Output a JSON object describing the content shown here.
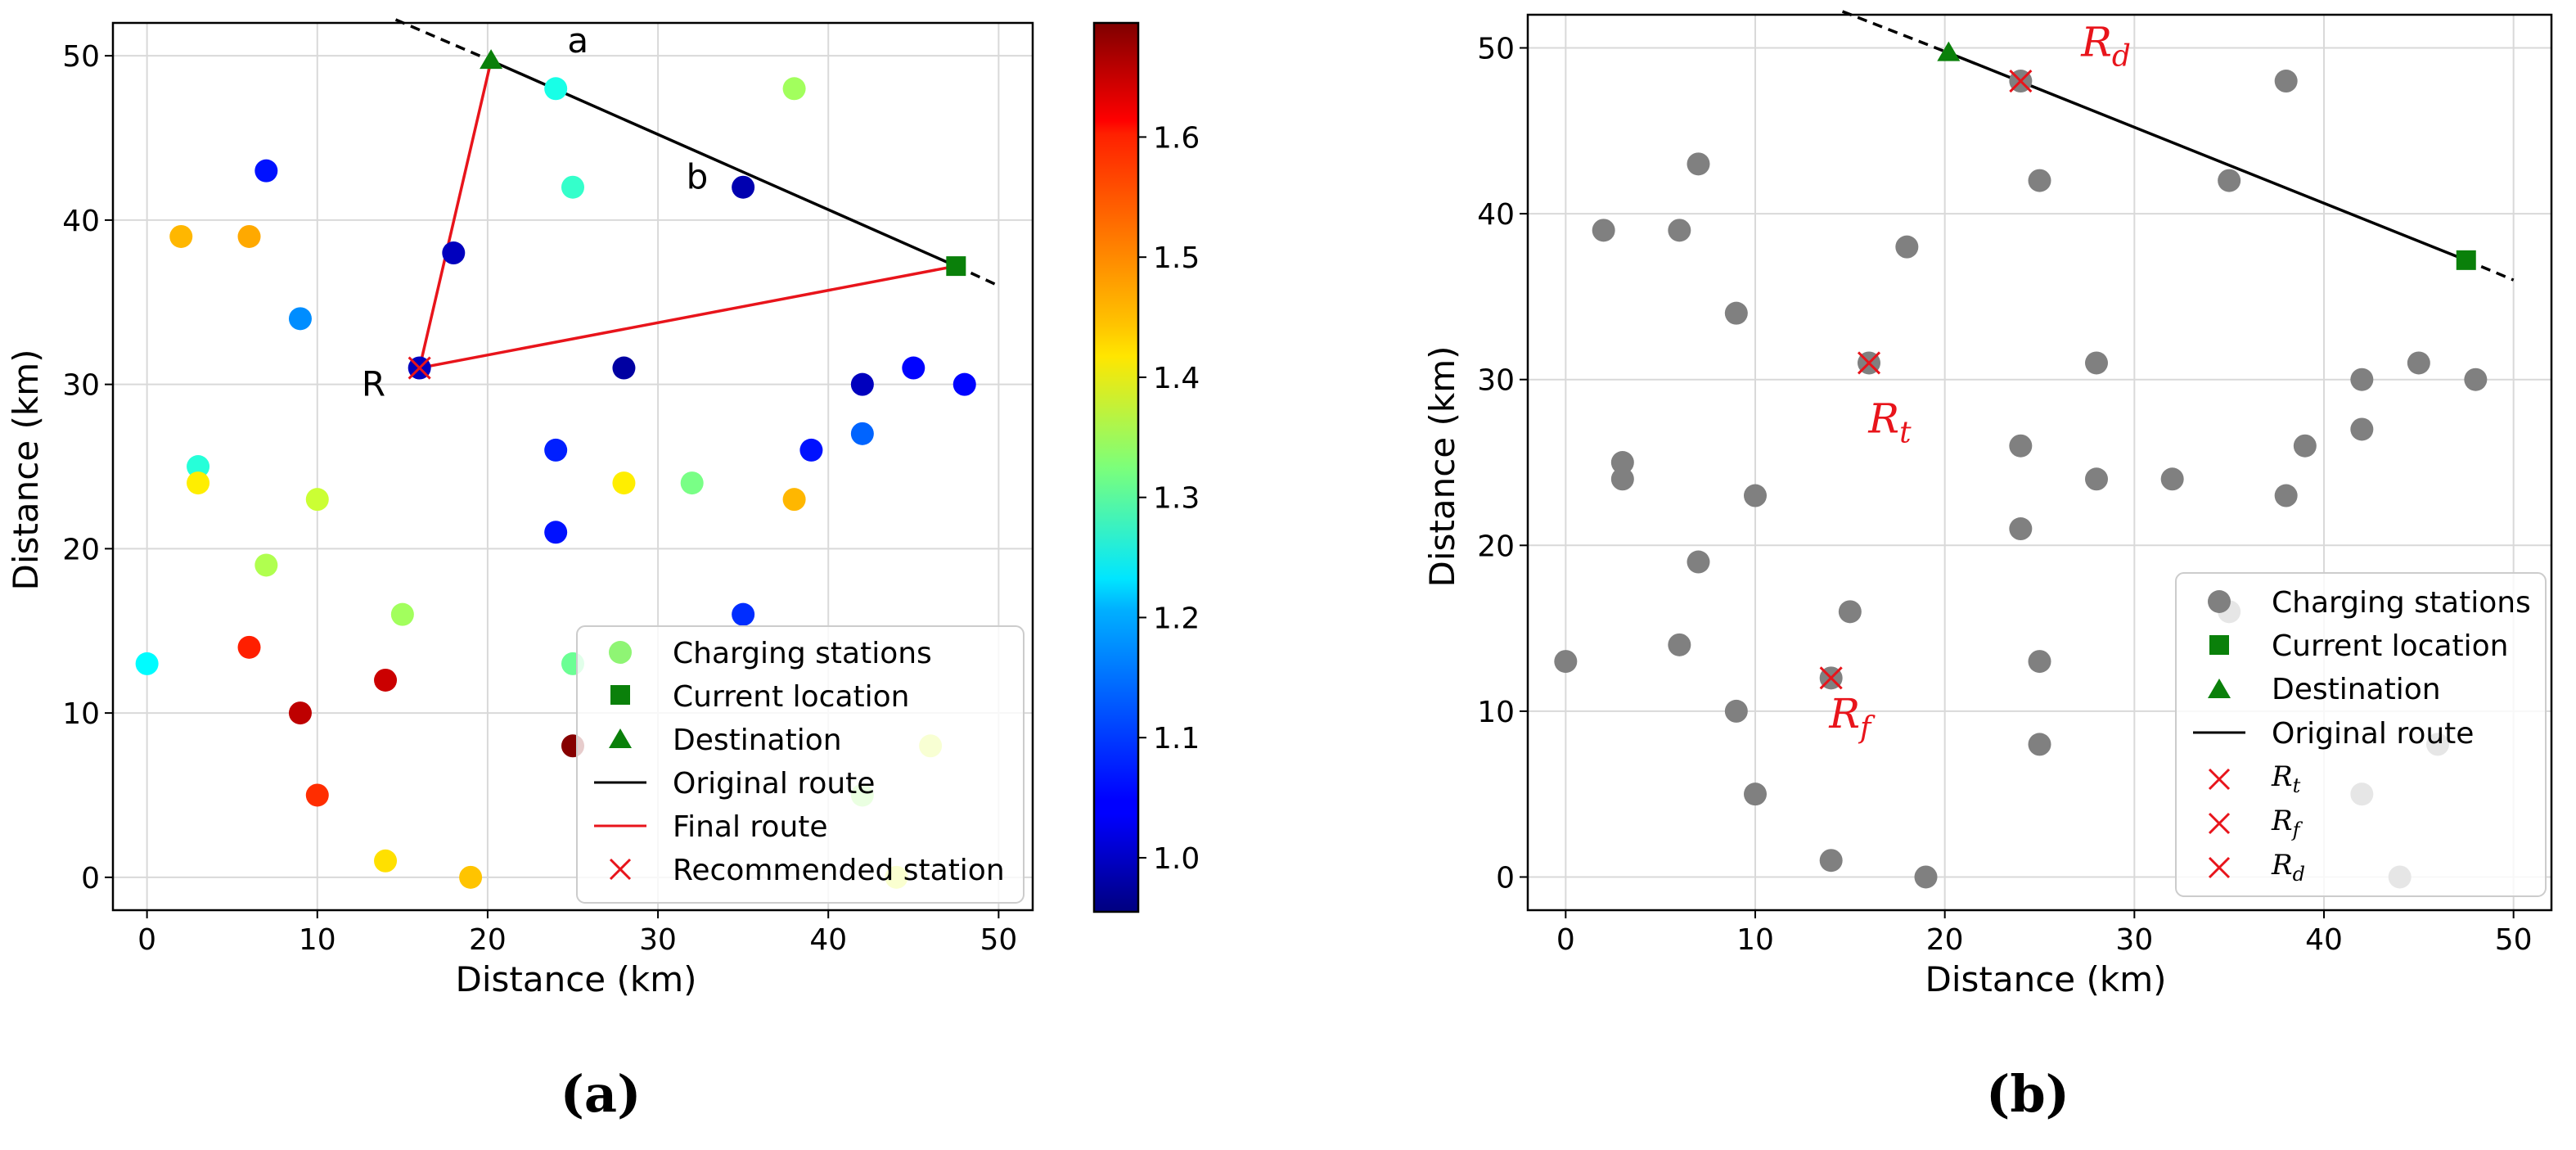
{
  "figure": {
    "panel_a_caption": "(a)",
    "panel_b_caption": "(b)",
    "colorbar_ticks": [
      "1.0",
      "1.1",
      "1.2",
      "1.3",
      "1.4",
      "1.5",
      "1.6"
    ],
    "colorbar_tick_values": [
      1.0,
      1.1,
      1.2,
      1.3,
      1.4,
      1.5,
      1.6
    ],
    "colorbar_range": [
      0.955,
      1.695
    ]
  },
  "chart_data": [
    {
      "type": "scatter",
      "panel": "a",
      "xlabel": "Distance (km)",
      "ylabel": "Distance (km)",
      "xlim": [
        -2,
        52
      ],
      "ylim": [
        -2,
        52
      ],
      "xticks": [
        0,
        10,
        20,
        30,
        40,
        50
      ],
      "yticks": [
        0,
        10,
        20,
        30,
        40,
        50
      ],
      "grid": true,
      "colorbar": true,
      "stations": [
        {
          "x": 0,
          "y": 13,
          "v": 1.23
        },
        {
          "x": 2,
          "y": 39,
          "v": 1.47
        },
        {
          "x": 3,
          "y": 25,
          "v": 1.26
        },
        {
          "x": 3,
          "y": 24,
          "v": 1.43
        },
        {
          "x": 6,
          "y": 39,
          "v": 1.48
        },
        {
          "x": 6,
          "y": 14,
          "v": 1.58
        },
        {
          "x": 7,
          "y": 43,
          "v": 1.06
        },
        {
          "x": 7,
          "y": 19,
          "v": 1.36
        },
        {
          "x": 9,
          "y": 34,
          "v": 1.15
        },
        {
          "x": 9,
          "y": 10,
          "v": 1.65
        },
        {
          "x": 10,
          "y": 23,
          "v": 1.38
        },
        {
          "x": 10,
          "y": 5,
          "v": 1.57
        },
        {
          "x": 14,
          "y": 12,
          "v": 1.64
        },
        {
          "x": 14,
          "y": 1,
          "v": 1.44
        },
        {
          "x": 15,
          "y": 16,
          "v": 1.35
        },
        {
          "x": 16,
          "y": 31,
          "v": 1.0
        },
        {
          "x": 18,
          "y": 38,
          "v": 1.0
        },
        {
          "x": 19,
          "y": 0,
          "v": 1.46
        },
        {
          "x": 24,
          "y": 48,
          "v": 1.25
        },
        {
          "x": 24,
          "y": 26,
          "v": 1.07
        },
        {
          "x": 24,
          "y": 21,
          "v": 1.06
        },
        {
          "x": 25,
          "y": 42,
          "v": 1.27
        },
        {
          "x": 25,
          "y": 13,
          "v": 1.31
        },
        {
          "x": 25,
          "y": 8,
          "v": 1.69
        },
        {
          "x": 28,
          "y": 31,
          "v": 0.98
        },
        {
          "x": 28,
          "y": 24,
          "v": 1.43
        },
        {
          "x": 32,
          "y": 24,
          "v": 1.32
        },
        {
          "x": 35,
          "y": 42,
          "v": 0.99
        },
        {
          "x": 35,
          "y": 16,
          "v": 1.08
        },
        {
          "x": 38,
          "y": 48,
          "v": 1.35
        },
        {
          "x": 38,
          "y": 23,
          "v": 1.47
        },
        {
          "x": 39,
          "y": 26,
          "v": 1.06
        },
        {
          "x": 42,
          "y": 30,
          "v": 1.0
        },
        {
          "x": 42,
          "y": 27,
          "v": 1.12
        },
        {
          "x": 42,
          "y": 5,
          "v": 1.34
        },
        {
          "x": 44,
          "y": 0,
          "v": 1.4
        },
        {
          "x": 45,
          "y": 31,
          "v": 1.05
        },
        {
          "x": 46,
          "y": 8,
          "v": 1.39
        },
        {
          "x": 48,
          "y": 30,
          "v": 1.05
        }
      ],
      "current_location": {
        "x": 47.5,
        "y": 37.2
      },
      "destination": {
        "x": 20.2,
        "y": 49.7
      },
      "original_route_solid": [
        [
          20.2,
          49.7
        ],
        [
          47.5,
          37.2
        ]
      ],
      "original_route_dashed": [
        [
          [
            14.6,
            52.2
          ],
          [
            20.2,
            49.7
          ]
        ],
        [
          [
            47.5,
            37.2
          ],
          [
            50,
            36
          ]
        ]
      ],
      "final_route": [
        [
          47.5,
          37.2
        ],
        [
          16,
          31
        ],
        [
          20.2,
          49.7
        ]
      ],
      "recommended_station": {
        "x": 16,
        "y": 31
      },
      "annotations": [
        {
          "text": "a",
          "x": 25.3,
          "y": 50.2
        },
        {
          "text": "b",
          "x": 32.3,
          "y": 41.9
        },
        {
          "text": "R",
          "x": 13.3,
          "y": 29.3
        }
      ],
      "legend_position": "lower-right",
      "legend": {
        "stations": "Charging stations",
        "current": "Current location",
        "destination": "Destination",
        "original": "Original route",
        "final": "Final route",
        "recommended": "Recommended station"
      }
    },
    {
      "type": "scatter",
      "panel": "b",
      "xlabel": "Distance (km)",
      "ylabel": "Distance (km)",
      "xlim": [
        -2,
        52
      ],
      "ylim": [
        -2,
        52
      ],
      "xticks": [
        0,
        10,
        20,
        30,
        40,
        50
      ],
      "yticks": [
        0,
        10,
        20,
        30,
        40,
        50
      ],
      "grid": true,
      "stations": [
        {
          "x": 0,
          "y": 13
        },
        {
          "x": 2,
          "y": 39
        },
        {
          "x": 3,
          "y": 25
        },
        {
          "x": 3,
          "y": 24
        },
        {
          "x": 6,
          "y": 39
        },
        {
          "x": 6,
          "y": 14
        },
        {
          "x": 7,
          "y": 43
        },
        {
          "x": 7,
          "y": 19
        },
        {
          "x": 9,
          "y": 34
        },
        {
          "x": 9,
          "y": 10
        },
        {
          "x": 10,
          "y": 23
        },
        {
          "x": 10,
          "y": 5
        },
        {
          "x": 14,
          "y": 12
        },
        {
          "x": 14,
          "y": 1
        },
        {
          "x": 15,
          "y": 16
        },
        {
          "x": 16,
          "y": 31
        },
        {
          "x": 18,
          "y": 38
        },
        {
          "x": 19,
          "y": 0
        },
        {
          "x": 24,
          "y": 48
        },
        {
          "x": 24,
          "y": 26
        },
        {
          "x": 24,
          "y": 21
        },
        {
          "x": 25,
          "y": 42
        },
        {
          "x": 25,
          "y": 13
        },
        {
          "x": 25,
          "y": 8
        },
        {
          "x": 28,
          "y": 31
        },
        {
          "x": 28,
          "y": 24
        },
        {
          "x": 32,
          "y": 24
        },
        {
          "x": 35,
          "y": 42
        },
        {
          "x": 35,
          "y": 16
        },
        {
          "x": 38,
          "y": 48
        },
        {
          "x": 38,
          "y": 23
        },
        {
          "x": 39,
          "y": 26
        },
        {
          "x": 42,
          "y": 30
        },
        {
          "x": 42,
          "y": 27
        },
        {
          "x": 42,
          "y": 5
        },
        {
          "x": 44,
          "y": 0
        },
        {
          "x": 45,
          "y": 31
        },
        {
          "x": 46,
          "y": 8
        },
        {
          "x": 48,
          "y": 30
        }
      ],
      "current_location": {
        "x": 47.5,
        "y": 37.2
      },
      "destination": {
        "x": 20.2,
        "y": 49.7
      },
      "original_route_solid": [
        [
          20.2,
          49.7
        ],
        [
          47.5,
          37.2
        ]
      ],
      "original_route_dashed": [
        [
          [
            14.6,
            52.2
          ],
          [
            20.2,
            49.7
          ]
        ],
        [
          [
            47.5,
            37.2
          ],
          [
            50,
            36
          ]
        ]
      ],
      "recommended": [
        {
          "name": "R_t",
          "x": 16,
          "y": 31
        },
        {
          "name": "R_f",
          "x": 14,
          "y": 12
        },
        {
          "name": "R_d",
          "x": 24,
          "y": 48
        }
      ],
      "labels": [
        {
          "base": "R",
          "sub": "d",
          "x": 28.5,
          "y": 49.5
        },
        {
          "base": "R",
          "sub": "t",
          "x": 17.1,
          "y": 26.8
        },
        {
          "base": "R",
          "sub": "f",
          "x": 15.0,
          "y": 9.0
        }
      ],
      "legend_position": "lower-right",
      "legend": {
        "stations": "Charging stations",
        "current": "Current location",
        "destination": "Destination",
        "original": "Original route",
        "r_t_base": "R",
        "r_t_sub": "t",
        "r_f_base": "R",
        "r_f_sub": "f",
        "r_d_base": "R",
        "r_d_sub": "d"
      }
    }
  ]
}
